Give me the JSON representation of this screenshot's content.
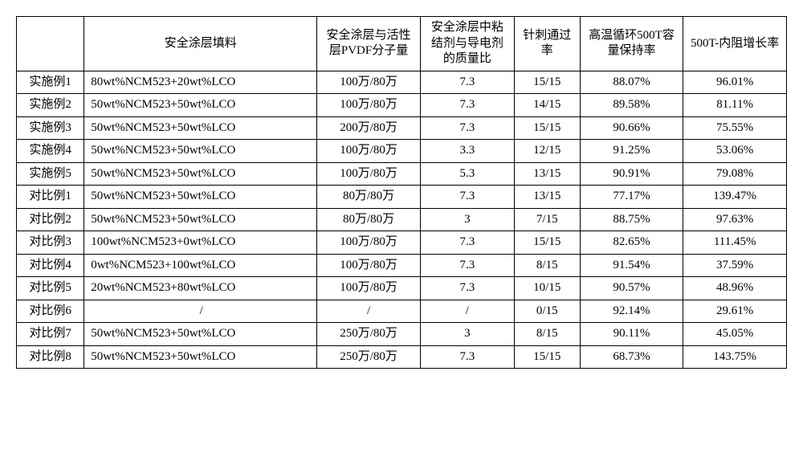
{
  "table": {
    "columns": [
      {
        "key": "label",
        "header": "",
        "class": "col-label"
      },
      {
        "key": "filler",
        "header": "安全涂层填料",
        "class": "col-filler"
      },
      {
        "key": "pvdf",
        "header": "安全涂层与活性层PVDF分子量",
        "class": "col-pvdf"
      },
      {
        "key": "ratio",
        "header": "安全涂层中粘结剂与导电剂的质量比",
        "class": "col-ratio"
      },
      {
        "key": "nail",
        "header": "针刺通过率",
        "class": "col-nail"
      },
      {
        "key": "cap",
        "header": "高温循环500T容量保持率",
        "class": "col-cap"
      },
      {
        "key": "ir",
        "header": "500T-内阻增长率",
        "class": "col-ir"
      }
    ],
    "rows": [
      {
        "label": "实施例1",
        "filler": "80wt%NCM523+20wt%LCO",
        "pvdf": "100万/80万",
        "ratio": "7.3",
        "nail": "15/15",
        "cap": "88.07%",
        "ir": "96.01%"
      },
      {
        "label": "实施例2",
        "filler": "50wt%NCM523+50wt%LCO",
        "pvdf": "100万/80万",
        "ratio": "7.3",
        "nail": "14/15",
        "cap": "89.58%",
        "ir": "81.11%"
      },
      {
        "label": "实施例3",
        "filler": "50wt%NCM523+50wt%LCO",
        "pvdf": "200万/80万",
        "ratio": "7.3",
        "nail": "15/15",
        "cap": "90.66%",
        "ir": "75.55%"
      },
      {
        "label": "实施例4",
        "filler": "50wt%NCM523+50wt%LCO",
        "pvdf": "100万/80万",
        "ratio": "3.3",
        "nail": "12/15",
        "cap": "91.25%",
        "ir": "53.06%"
      },
      {
        "label": "实施例5",
        "filler": "50wt%NCM523+50wt%LCO",
        "pvdf": "100万/80万",
        "ratio": "5.3",
        "nail": "13/15",
        "cap": "90.91%",
        "ir": "79.08%"
      },
      {
        "label": "对比例1",
        "filler": "50wt%NCM523+50wt%LCO",
        "pvdf": "80万/80万",
        "ratio": "7.3",
        "nail": "13/15",
        "cap": "77.17%",
        "ir": "139.47%"
      },
      {
        "label": "对比例2",
        "filler": "50wt%NCM523+50wt%LCO",
        "pvdf": "80万/80万",
        "ratio": "3",
        "nail": "7/15",
        "cap": "88.75%",
        "ir": "97.63%"
      },
      {
        "label": "对比例3",
        "filler": "100wt%NCM523+0wt%LCO",
        "pvdf": "100万/80万",
        "ratio": "7.3",
        "nail": "15/15",
        "cap": "82.65%",
        "ir": "111.45%"
      },
      {
        "label": "对比例4",
        "filler": "0wt%NCM523+100wt%LCO",
        "pvdf": "100万/80万",
        "ratio": "7.3",
        "nail": "8/15",
        "cap": "91.54%",
        "ir": "37.59%"
      },
      {
        "label": "对比例5",
        "filler": "20wt%NCM523+80wt%LCO",
        "pvdf": "100万/80万",
        "ratio": "7.3",
        "nail": "10/15",
        "cap": "90.57%",
        "ir": "48.96%"
      },
      {
        "label": "对比例6",
        "filler": "/",
        "pvdf": "/",
        "ratio": "/",
        "nail": "0/15",
        "cap": "92.14%",
        "ir": "29.61%"
      },
      {
        "label": "对比例7",
        "filler": "50wt%NCM523+50wt%LCO",
        "pvdf": "250万/80万",
        "ratio": "3",
        "nail": "8/15",
        "cap": "90.11%",
        "ir": "45.05%"
      },
      {
        "label": "对比例8",
        "filler": "50wt%NCM523+50wt%LCO",
        "pvdf": "250万/80万",
        "ratio": "7.3",
        "nail": "15/15",
        "cap": "68.73%",
        "ir": "143.75%"
      }
    ]
  }
}
